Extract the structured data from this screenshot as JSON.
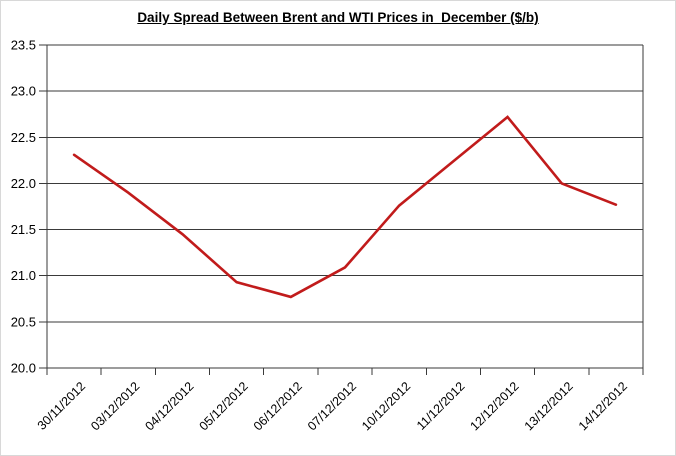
{
  "chart_data": {
    "type": "line",
    "title": "Daily Spread Between Brent and WTI Prices in  December ($/b)",
    "categories": [
      "30/11/2012",
      "03/12/2012",
      "04/12/2012",
      "05/12/2012",
      "06/12/2012",
      "07/12/2012",
      "10/12/2012",
      "11/12/2012",
      "12/12/2012",
      "13/12/2012",
      "14/12/2012"
    ],
    "values": [
      22.31,
      21.9,
      21.45,
      20.93,
      20.77,
      21.09,
      21.76,
      22.24,
      22.72,
      22.0,
      21.77
    ],
    "xlabel": "",
    "ylabel": "",
    "ylim": [
      20.0,
      23.5
    ],
    "ytick_step": 0.5,
    "ytick_labels": [
      "20.0",
      "20.5",
      "21.0",
      "21.5",
      "22.0",
      "22.5",
      "23.0",
      "23.5"
    ],
    "grid": "horizontal",
    "legend": "none",
    "line_color": "#c11b1b",
    "axis_color": "#3a3a3a"
  }
}
